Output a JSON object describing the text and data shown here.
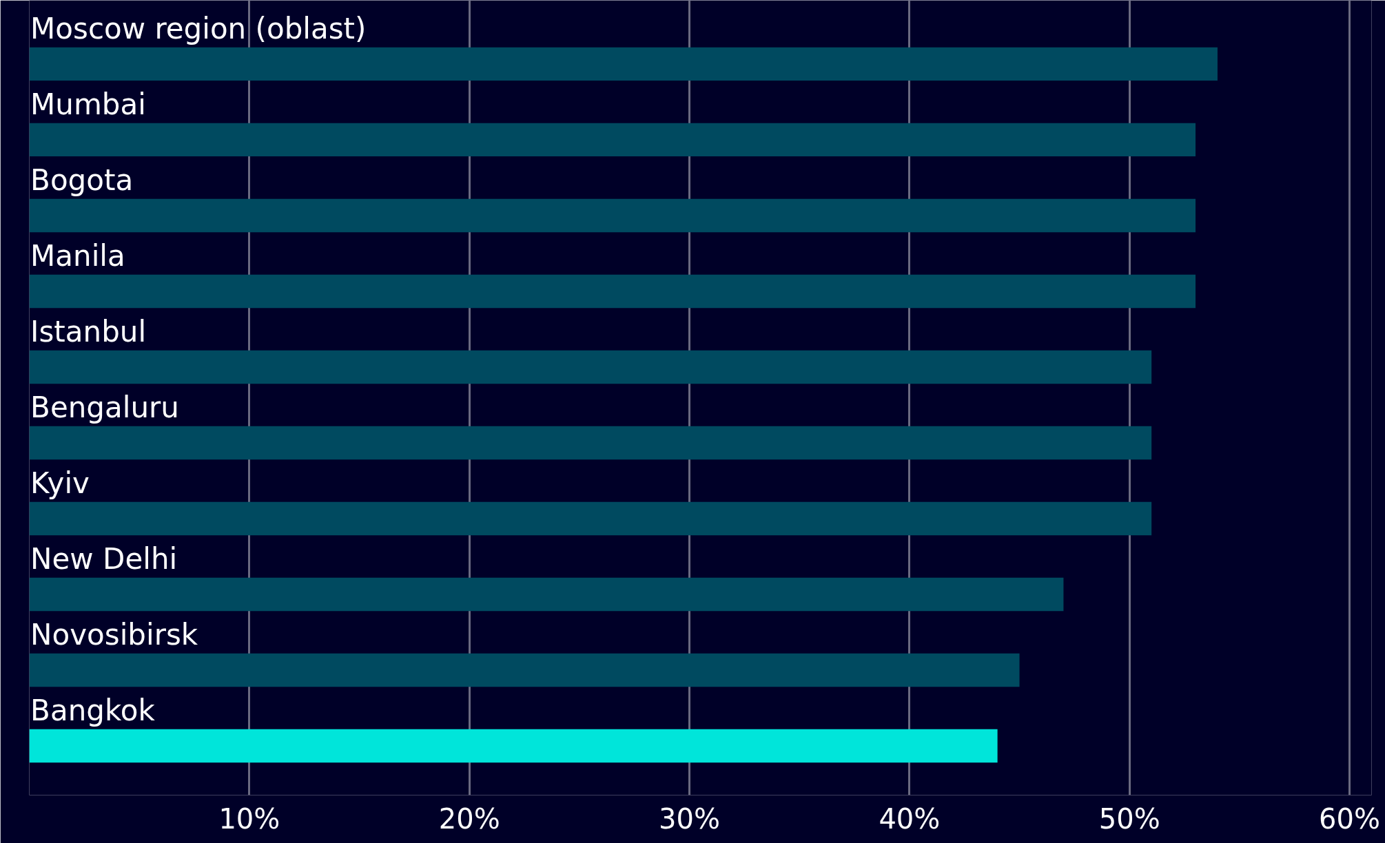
{
  "chart_data": {
    "type": "bar",
    "orientation": "horizontal",
    "categories": [
      "Moscow region (oblast)",
      "Mumbai",
      "Bogota",
      "Manila",
      "Istanbul",
      "Bengaluru",
      "Kyiv",
      "New Delhi",
      "Novosibirsk",
      "Bangkok"
    ],
    "values": [
      54,
      53,
      53,
      53,
      51,
      51,
      51,
      47,
      45,
      44
    ],
    "colors": [
      "#004a60",
      "#004a60",
      "#004a60",
      "#004a60",
      "#004a60",
      "#004a60",
      "#004a60",
      "#004a60",
      "#004a60",
      "#00e5da"
    ],
    "xlim": [
      0,
      61
    ],
    "xticks": [
      {
        "value": 10,
        "label": "10%"
      },
      {
        "value": 20,
        "label": "20%"
      },
      {
        "value": 30,
        "label": "30%"
      },
      {
        "value": 40,
        "label": "40%"
      },
      {
        "value": 50,
        "label": "50%"
      },
      {
        "value": 60,
        "label": "60%"
      }
    ],
    "grid": "x"
  }
}
